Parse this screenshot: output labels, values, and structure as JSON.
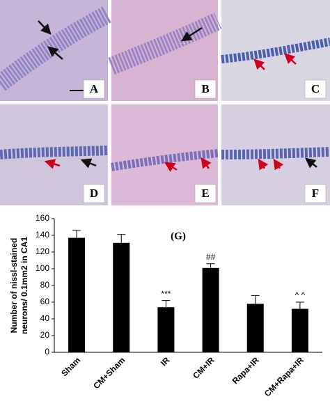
{
  "panels": [
    {
      "label": "A"
    },
    {
      "label": "B"
    },
    {
      "label": "C"
    },
    {
      "label": "D"
    },
    {
      "label": "E"
    },
    {
      "label": "F"
    }
  ],
  "chart_data": {
    "type": "bar",
    "title": "(G)",
    "y_label": "Number of nissl-stained neurons/ 0.1mm2 in CA1",
    "categories": [
      "Sham",
      "CM+Sham",
      "IR",
      "CM+IR",
      "Rapa+IR",
      "CM+Rapa+IR"
    ],
    "values": [
      137,
      131,
      54,
      101,
      58,
      52
    ],
    "errors": [
      9,
      10,
      8,
      5,
      10,
      8
    ],
    "annotations": [
      null,
      null,
      "***",
      "##",
      null,
      "^ ^"
    ],
    "color": "#000000",
    "ylim": [
      0,
      160
    ],
    "yticks": [
      0,
      20,
      40,
      60,
      80,
      100,
      120,
      140,
      160
    ]
  }
}
